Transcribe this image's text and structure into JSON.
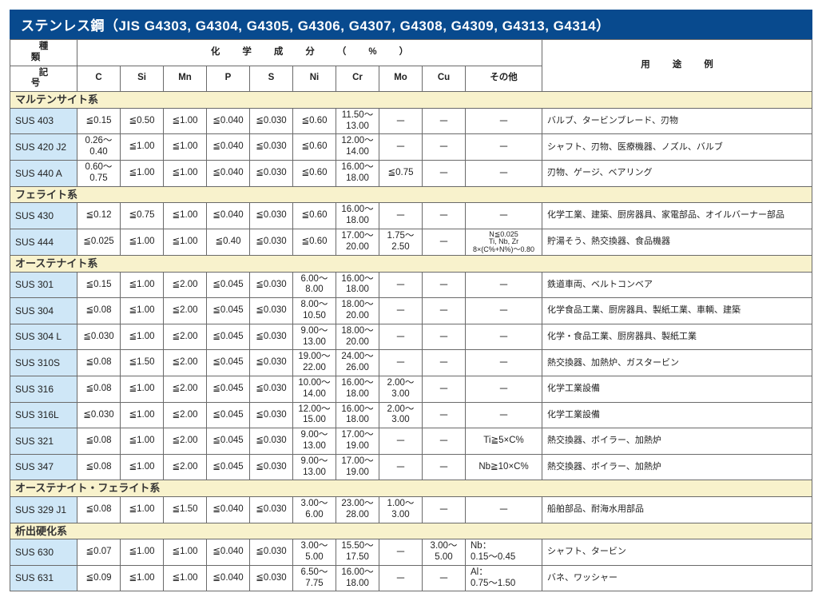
{
  "title": "ステンレス鋼（JIS G4303, G4304, G4305, G4306, G4307, G4308, G4309, G4313, G4314）",
  "header": {
    "type_kind": "種類",
    "type_symbol": "記号",
    "chem_header": "化学成分（%）",
    "use_header": "用途例",
    "cols": [
      "C",
      "Si",
      "Mn",
      "P",
      "S",
      "Ni",
      "Cr",
      "Mo",
      "Cu",
      "その他"
    ]
  },
  "groups": [
    {
      "name": "マルテンサイト系",
      "rows": [
        {
          "label": "SUS 403",
          "C": "≦0.15",
          "Si": "≦0.50",
          "Mn": "≦1.00",
          "P": "≦0.040",
          "S": "≦0.030",
          "Ni": "≦0.60",
          "Cr": "11.50～\n13.00",
          "Mo": "－",
          "Cu": "－",
          "Other": "－",
          "Use": "バルブ、タービンブレード、刃物"
        },
        {
          "label": "SUS 420 J2",
          "C": "0.26～\n0.40",
          "Si": "≦1.00",
          "Mn": "≦1.00",
          "P": "≦0.040",
          "S": "≦0.030",
          "Ni": "≦0.60",
          "Cr": "12.00～\n14.00",
          "Mo": "－",
          "Cu": "－",
          "Other": "－",
          "Use": "シャフト、刃物、医療機器、ノズル、バルブ"
        },
        {
          "label": "SUS 440 A",
          "C": "0.60～\n0.75",
          "Si": "≦1.00",
          "Mn": "≦1.00",
          "P": "≦0.040",
          "S": "≦0.030",
          "Ni": "≦0.60",
          "Cr": "16.00～\n18.00",
          "Mo": "≦0.75",
          "Cu": "－",
          "Other": "－",
          "Use": "刃物、ゲージ、ベアリング"
        }
      ]
    },
    {
      "name": "フェライト系",
      "rows": [
        {
          "label": "SUS 430",
          "C": "≦0.12",
          "Si": "≦0.75",
          "Mn": "≦1.00",
          "P": "≦0.040",
          "S": "≦0.030",
          "Ni": "≦0.60",
          "Cr": "16.00～\n18.00",
          "Mo": "－",
          "Cu": "－",
          "Other": "－",
          "Use": "化学工業、建築、厨房器具、家電部品、オイルバーナー部品"
        },
        {
          "label": "SUS 444",
          "C": "≦0.025",
          "Si": "≦1.00",
          "Mn": "≦1.00",
          "P": "≦0.40",
          "S": "≦0.030",
          "Ni": "≦0.60",
          "Cr": "17.00～\n20.00",
          "Mo": "1.75～\n2.50",
          "Cu": "－",
          "Other": "N≦0.025\nTi, Nb, Zr\n8×(C%+N%)～0.80",
          "OtherSmall": true,
          "Use": "貯湯そう、熱交換器、食品機器"
        }
      ]
    },
    {
      "name": "オーステナイト系",
      "rows": [
        {
          "label": "SUS 301",
          "C": "≦0.15",
          "Si": "≦1.00",
          "Mn": "≦2.00",
          "P": "≦0.045",
          "S": "≦0.030",
          "Ni": "6.00～\n8.00",
          "Cr": "16.00～\n18.00",
          "Mo": "－",
          "Cu": "－",
          "Other": "－",
          "Use": "鉄道車両、ベルトコンベア"
        },
        {
          "label": "SUS 304",
          "C": "≦0.08",
          "Si": "≦1.00",
          "Mn": "≦2.00",
          "P": "≦0.045",
          "S": "≦0.030",
          "Ni": "8.00～\n10.50",
          "Cr": "18.00～\n20.00",
          "Mo": "－",
          "Cu": "－",
          "Other": "－",
          "Use": "化学食品工業、厨房器具、製紙工業、車輌、建築"
        },
        {
          "label": "SUS 304 L",
          "C": "≦0.030",
          "Si": "≦1.00",
          "Mn": "≦2.00",
          "P": "≦0.045",
          "S": "≦0.030",
          "Ni": "9.00～\n13.00",
          "Cr": "18.00～\n20.00",
          "Mo": "－",
          "Cu": "－",
          "Other": "－",
          "Use": "化学・食品工業、厨房器具、製紙工業"
        },
        {
          "label": "SUS 310S",
          "C": "≦0.08",
          "Si": "≦1.50",
          "Mn": "≦2.00",
          "P": "≦0.045",
          "S": "≦0.030",
          "Ni": "19.00～\n22.00",
          "Cr": "24.00～\n26.00",
          "Mo": "－",
          "Cu": "－",
          "Other": "－",
          "Use": "熱交換器、加熱炉、ガスタービン"
        },
        {
          "label": "SUS 316",
          "C": "≦0.08",
          "Si": "≦1.00",
          "Mn": "≦2.00",
          "P": "≦0.045",
          "S": "≦0.030",
          "Ni": "10.00～\n14.00",
          "Cr": "16.00～\n18.00",
          "Mo": "2.00～\n3.00",
          "Cu": "－",
          "Other": "－",
          "Use": "化学工業設備"
        },
        {
          "label": "SUS 316L",
          "C": "≦0.030",
          "Si": "≦1.00",
          "Mn": "≦2.00",
          "P": "≦0.045",
          "S": "≦0.030",
          "Ni": "12.00～\n15.00",
          "Cr": "16.00～\n18.00",
          "Mo": "2.00～\n3.00",
          "Cu": "－",
          "Other": "－",
          "Use": "化学工業設備"
        },
        {
          "label": "SUS 321",
          "C": "≦0.08",
          "Si": "≦1.00",
          "Mn": "≦2.00",
          "P": "≦0.045",
          "S": "≦0.030",
          "Ni": "9.00～\n13.00",
          "Cr": "17.00～\n19.00",
          "Mo": "－",
          "Cu": "－",
          "Other": "Ti≧5×C%",
          "Use": "熱交換器、ボイラー、加熱炉"
        },
        {
          "label": "SUS 347",
          "C": "≦0.08",
          "Si": "≦1.00",
          "Mn": "≦2.00",
          "P": "≦0.045",
          "S": "≦0.030",
          "Ni": "9.00～\n13.00",
          "Cr": "17.00～\n19.00",
          "Mo": "－",
          "Cu": "－",
          "Other": "Nb≧10×C%",
          "Use": "熱交換器、ボイラー、加熱炉"
        }
      ]
    },
    {
      "name": "オーステナイト・フェライト系",
      "rows": [
        {
          "label": "SUS 329 J1",
          "C": "≦0.08",
          "Si": "≦1.00",
          "Mn": "≦1.50",
          "P": "≦0.040",
          "S": "≦0.030",
          "Ni": "3.00～\n6.00",
          "Cr": "23.00～\n28.00",
          "Mo": "1.00～\n3.00",
          "Cu": "－",
          "Other": "－",
          "Use": "船舶部品、耐海水用部品"
        }
      ]
    },
    {
      "name": "析出硬化系",
      "rows": [
        {
          "label": "SUS 630",
          "C": "≦0.07",
          "Si": "≦1.00",
          "Mn": "≦1.00",
          "P": "≦0.040",
          "S": "≦0.030",
          "Ni": "3.00～\n5.00",
          "Cr": "15.50～\n17.50",
          "Mo": "－",
          "Cu": "3.00～\n5.00",
          "Other": "Nb：\n0.15～0.45",
          "Use": "シャフト、タービン"
        },
        {
          "label": "SUS 631",
          "C": "≦0.09",
          "Si": "≦1.00",
          "Mn": "≦1.00",
          "P": "≦0.040",
          "S": "≦0.030",
          "Ni": "6.50～\n7.75",
          "Cr": "16.00～\n18.00",
          "Mo": "－",
          "Cu": "－",
          "Other": "Al：\n0.75～1.50",
          "Use": "バネ、ワッシャー"
        }
      ]
    }
  ]
}
